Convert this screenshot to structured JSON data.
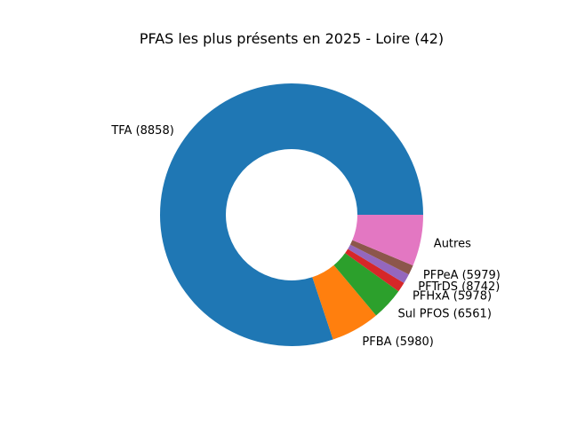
{
  "chart_data": {
    "type": "pie",
    "donut": true,
    "title": "PFAS les plus présents en 2025 - Loire (42)",
    "labels": [
      "TFA (8858)",
      "PFBA (5980)",
      "Sul PFOS (6561)",
      "PFHxA (5978)",
      "PFTrDS (8742)",
      "PFPeA (5979)",
      "Autres"
    ],
    "values": [
      80.1,
      6.0,
      4.0,
      1.2,
      1.2,
      1.2,
      6.3
    ],
    "colors": [
      "#1f77b4",
      "#ff7f0e",
      "#2ca02c",
      "#d62728",
      "#9467bd",
      "#8c564b",
      "#e377c2"
    ],
    "start_angle_deg": 0,
    "direction": "counterclockwise"
  }
}
